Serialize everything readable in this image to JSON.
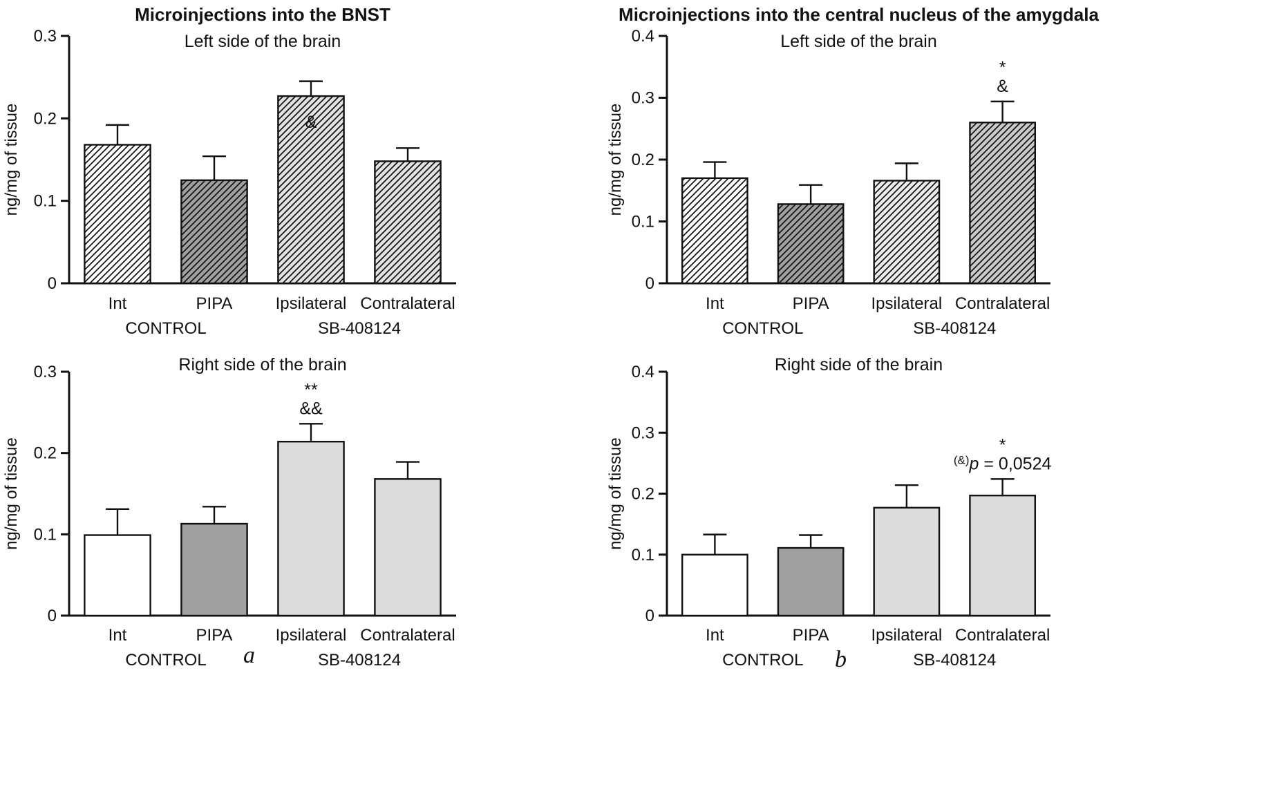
{
  "figure": {
    "panel_labels": {
      "a": "a",
      "b": "b"
    }
  },
  "palette": {
    "ink": "#111111",
    "bar_white": "#ffffff",
    "bar_gray": "#a0a0a0",
    "bar_light_hatch": "#e2e2e2",
    "bar_light_solid": "#dcdcdc",
    "bar_contra_amygdala_hatch": "#c9c9c9"
  },
  "chart_data": [
    {
      "type": "bar",
      "panel": "a",
      "title": "Microinjections into the BNST",
      "subtitle": "Left side of the brain",
      "ylabel": "ng/mg of tissue",
      "xlabel": "",
      "ylim": [
        0,
        0.3
      ],
      "yticks": [
        0,
        0.1,
        0.2,
        0.3
      ],
      "grid": false,
      "legend": "none",
      "categories": [
        "Int",
        "PIPA",
        "Ipsilateral",
        "Contralateral"
      ],
      "group_labels": [
        {
          "label": "CONTROL",
          "bars": [
            0,
            1
          ]
        },
        {
          "label": "SB-408124",
          "bars": [
            2,
            3
          ]
        }
      ],
      "bars": [
        {
          "category": "Int",
          "value": 0.168,
          "error_up": 0.024,
          "fill": "#ffffff",
          "hatch": true
        },
        {
          "category": "PIPA",
          "value": 0.125,
          "error_up": 0.029,
          "fill": "#a0a0a0",
          "hatch": true
        },
        {
          "category": "Ipsilateral",
          "value": 0.227,
          "error_up": 0.018,
          "fill": "#e2e2e2",
          "hatch": true,
          "annotations": [
            {
              "text": "&",
              "position": "inside"
            }
          ]
        },
        {
          "category": "Contralateral",
          "value": 0.148,
          "error_up": 0.016,
          "fill": "#e2e2e2",
          "hatch": true
        }
      ]
    },
    {
      "type": "bar",
      "panel": "b",
      "title": "Microinjections into the central nucleus of the amygdala",
      "subtitle": "Left side of the brain",
      "ylabel": "ng/mg of tissue",
      "xlabel": "",
      "ylim": [
        0,
        0.4
      ],
      "yticks": [
        0,
        0.1,
        0.2,
        0.3,
        0.4
      ],
      "grid": false,
      "legend": "none",
      "categories": [
        "Int",
        "PIPA",
        "Ipsilateral",
        "Contralateral"
      ],
      "group_labels": [
        {
          "label": "CONTROL",
          "bars": [
            0,
            1
          ]
        },
        {
          "label": "SB-408124",
          "bars": [
            2,
            3
          ]
        }
      ],
      "bars": [
        {
          "category": "Int",
          "value": 0.17,
          "error_up": 0.026,
          "fill": "#ffffff",
          "hatch": true
        },
        {
          "category": "PIPA",
          "value": 0.128,
          "error_up": 0.031,
          "fill": "#a0a0a0",
          "hatch": true
        },
        {
          "category": "Ipsilateral",
          "value": 0.166,
          "error_up": 0.028,
          "fill": "#ececec",
          "hatch": true
        },
        {
          "category": "Contralateral",
          "value": 0.26,
          "error_up": 0.034,
          "fill": "#c9c9c9",
          "hatch": true,
          "annotations": [
            {
              "text": "*"
            },
            {
              "text": "&"
            }
          ]
        }
      ]
    },
    {
      "type": "bar",
      "panel": "a",
      "title": "",
      "subtitle": "Right side of the brain",
      "ylabel": "ng/mg of tissue",
      "xlabel": "",
      "ylim": [
        0,
        0.3
      ],
      "yticks": [
        0,
        0.1,
        0.2,
        0.3
      ],
      "grid": false,
      "legend": "none",
      "categories": [
        "Int",
        "PIPA",
        "Ipsilateral",
        "Contralateral"
      ],
      "group_labels": [
        {
          "label": "CONTROL",
          "bars": [
            0,
            1
          ]
        },
        {
          "label": "SB-408124",
          "bars": [
            2,
            3
          ]
        }
      ],
      "bars": [
        {
          "category": "Int",
          "value": 0.099,
          "error_up": 0.032,
          "fill": "#ffffff",
          "hatch": false
        },
        {
          "category": "PIPA",
          "value": 0.113,
          "error_up": 0.021,
          "fill": "#a0a0a0",
          "hatch": false
        },
        {
          "category": "Ipsilateral",
          "value": 0.214,
          "error_up": 0.022,
          "fill": "#dcdcdc",
          "hatch": false,
          "annotations": [
            {
              "text": "**"
            },
            {
              "text": "&&"
            }
          ]
        },
        {
          "category": "Contralateral",
          "value": 0.168,
          "error_up": 0.021,
          "fill": "#dcdcdc",
          "hatch": false
        }
      ]
    },
    {
      "type": "bar",
      "panel": "b",
      "title": "",
      "subtitle": "Right side of the brain",
      "ylabel": "ng/mg of tissue",
      "xlabel": "",
      "ylim": [
        0,
        0.4
      ],
      "yticks": [
        0,
        0.1,
        0.2,
        0.3,
        0.4
      ],
      "grid": false,
      "legend": "none",
      "categories": [
        "Int",
        "PIPA",
        "Ipsilateral",
        "Contralateral"
      ],
      "group_labels": [
        {
          "label": "CONTROL",
          "bars": [
            0,
            1
          ]
        },
        {
          "label": "SB-408124",
          "bars": [
            2,
            3
          ]
        }
      ],
      "bars": [
        {
          "category": "Int",
          "value": 0.1,
          "error_up": 0.033,
          "fill": "#ffffff",
          "hatch": false
        },
        {
          "category": "PIPA",
          "value": 0.111,
          "error_up": 0.021,
          "fill": "#a0a0a0",
          "hatch": false
        },
        {
          "category": "Ipsilateral",
          "value": 0.177,
          "error_up": 0.037,
          "fill": "#dcdcdc",
          "hatch": false
        },
        {
          "category": "Contralateral",
          "value": 0.197,
          "error_up": 0.027,
          "fill": "#dcdcdc",
          "hatch": false,
          "annotations": [
            {
              "text": "*"
            },
            {
              "sup": "(&)",
              "italic": "p",
              "rest": " = 0,0524"
            }
          ]
        }
      ]
    }
  ]
}
